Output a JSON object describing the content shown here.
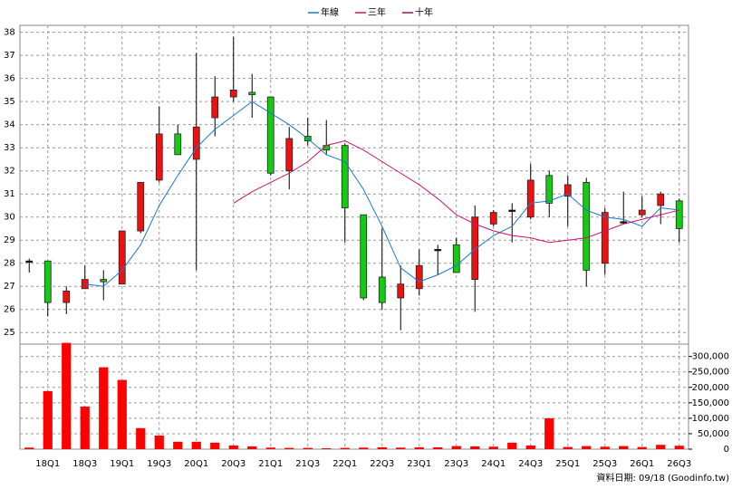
{
  "chart_data": {
    "type": "candlestick",
    "categories": [
      null,
      "18Q1",
      null,
      "18Q3",
      null,
      "19Q1",
      null,
      "19Q3",
      null,
      "20Q1",
      null,
      "20Q3",
      null,
      "21Q1",
      null,
      "21Q3",
      null,
      "22Q1",
      null,
      "22Q3",
      null,
      "23Q1",
      null,
      "23Q3",
      null,
      "24Q1",
      null,
      "24Q3",
      null,
      "25Q1",
      null,
      "25Q3",
      null,
      "26Q1",
      null,
      "26Q3"
    ],
    "open": [
      28.1,
      28.1,
      26.3,
      26.9,
      27.3,
      27.1,
      29.4,
      31.6,
      33.6,
      32.5,
      34.3,
      35.2,
      35.4,
      35.2,
      32.0,
      33.5,
      33.1,
      33.1,
      30.1,
      27.4,
      26.5,
      26.9,
      28.6,
      28.8,
      27.3,
      29.7,
      30.3,
      30.0,
      31.8,
      30.9,
      31.5,
      28.0,
      29.8,
      30.1,
      30.5,
      30.7
    ],
    "high": [
      28.2,
      28.1,
      27.0,
      27.9,
      27.7,
      29.4,
      31.5,
      34.8,
      34.0,
      37.1,
      36.1,
      37.8,
      36.2,
      35.2,
      33.9,
      34.3,
      34.2,
      33.2,
      30.1,
      29.5,
      27.9,
      28.6,
      28.8,
      29.1,
      30.5,
      30.3,
      30.6,
      32.3,
      32.0,
      31.8,
      31.7,
      30.4,
      31.1,
      30.9,
      31.1,
      30.8
    ],
    "low": [
      27.6,
      25.7,
      25.8,
      26.9,
      26.4,
      27.1,
      29.3,
      31.5,
      32.7,
      27.7,
      33.5,
      35.0,
      34.3,
      31.8,
      31.2,
      33.1,
      32.7,
      28.9,
      26.4,
      26.0,
      25.1,
      26.6,
      27.5,
      27.6,
      25.9,
      29.6,
      28.9,
      29.9,
      30.0,
      29.6,
      27.0,
      27.5,
      29.7,
      30.0,
      29.7,
      28.9
    ],
    "close": [
      28.1,
      26.3,
      26.8,
      27.3,
      27.2,
      29.4,
      31.5,
      33.6,
      32.7,
      33.9,
      35.2,
      35.5,
      35.3,
      31.9,
      33.4,
      33.3,
      32.9,
      30.4,
      26.5,
      26.3,
      27.1,
      27.9,
      28.6,
      27.6,
      30.0,
      30.2,
      30.3,
      31.6,
      30.6,
      31.4,
      27.7,
      30.2,
      29.8,
      30.3,
      31.0,
      29.5
    ],
    "up_color": "#ee1111",
    "down_color": "#11cc11",
    "flat_color": "#000000",
    "ylim": [
      24.5,
      38.3
    ],
    "yticks": [
      25,
      26,
      27,
      28,
      29,
      30,
      31,
      32,
      33,
      34,
      35,
      36,
      37,
      38
    ],
    "grid": true,
    "series": [
      {
        "name": "年線",
        "color": "#1a78d0",
        "values": [
          null,
          null,
          null,
          27.1,
          27.0,
          27.7,
          28.8,
          30.5,
          31.8,
          33.0,
          33.8,
          34.4,
          35.0,
          34.5,
          34.0,
          33.4,
          32.7,
          32.4,
          31.2,
          29.6,
          27.8,
          27.2,
          27.5,
          27.9,
          28.6,
          29.2,
          29.6,
          30.6,
          30.7,
          31.0,
          30.3,
          30.0,
          29.9,
          29.6,
          30.4,
          30.3
        ]
      },
      {
        "name": "三年",
        "color": "#d0106e",
        "values": [
          null,
          null,
          null,
          null,
          null,
          null,
          null,
          null,
          null,
          null,
          null,
          30.6,
          31.1,
          31.5,
          31.9,
          32.4,
          33.1,
          33.3,
          32.9,
          32.4,
          31.9,
          31.4,
          30.8,
          30.1,
          29.7,
          29.4,
          29.2,
          29.1,
          28.9,
          29.0,
          29.1,
          29.4,
          29.7,
          29.9,
          30.1,
          30.3
        ]
      },
      {
        "name": "十年",
        "color": "#a0106e",
        "values": [
          null,
          null,
          null,
          null,
          null,
          null,
          null,
          null,
          null,
          null,
          null,
          null,
          null,
          null,
          null,
          null,
          null,
          null,
          null,
          null,
          null,
          null,
          null,
          null,
          null,
          null,
          null,
          null,
          null,
          null,
          null,
          null,
          null,
          null,
          null,
          null
        ]
      }
    ],
    "volume": {
      "color": "#ff0000",
      "values": [
        5000,
        188000,
        344000,
        138000,
        265000,
        224000,
        68000,
        44000,
        24000,
        24000,
        21000,
        12000,
        9000,
        5000,
        4000,
        4000,
        3000,
        4000,
        5000,
        6000,
        5000,
        6000,
        6000,
        10000,
        9000,
        8000,
        21000,
        12000,
        100000,
        7000,
        10000,
        8000,
        10000,
        7000,
        14000,
        11000
      ],
      "ylim": [
        0,
        340000
      ],
      "yticks": [
        0,
        {
          "value": 50000,
          "label": "50,000"
        },
        {
          "value": 100000,
          "label": "100,000"
        },
        {
          "value": 150000,
          "label": "150,000"
        },
        {
          "value": 200000,
          "label": "200,000"
        },
        {
          "value": 250000,
          "label": "250,000"
        },
        {
          "value": 300000,
          "label": "300,000"
        }
      ]
    },
    "footer": "資料日期: 09/18 (Goodinfo.tw)"
  }
}
